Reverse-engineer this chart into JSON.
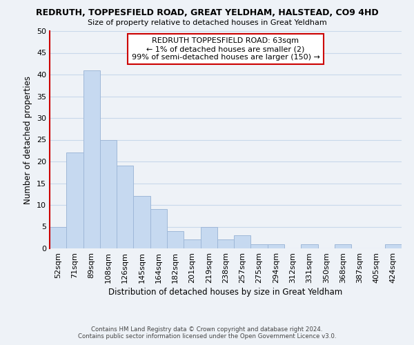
{
  "title": "REDRUTH, TOPPESFIELD ROAD, GREAT YELDHAM, HALSTEAD, CO9 4HD",
  "subtitle": "Size of property relative to detached houses in Great Yeldham",
  "xlabel": "Distribution of detached houses by size in Great Yeldham",
  "ylabel": "Number of detached properties",
  "bar_labels": [
    "52sqm",
    "71sqm",
    "89sqm",
    "108sqm",
    "126sqm",
    "145sqm",
    "164sqm",
    "182sqm",
    "201sqm",
    "219sqm",
    "238sqm",
    "257sqm",
    "275sqm",
    "294sqm",
    "312sqm",
    "331sqm",
    "350sqm",
    "368sqm",
    "387sqm",
    "405sqm",
    "424sqm"
  ],
  "bar_values": [
    5,
    22,
    41,
    25,
    19,
    12,
    9,
    4,
    2,
    5,
    2,
    3,
    1,
    1,
    0,
    1,
    0,
    1,
    0,
    0,
    1
  ],
  "bar_color": "#c6d9f0",
  "bar_edge_color": "#9fb8d8",
  "ylim": [
    0,
    50
  ],
  "yticks": [
    0,
    5,
    10,
    15,
    20,
    25,
    30,
    35,
    40,
    45,
    50
  ],
  "annotation_title": "REDRUTH TOPPESFIELD ROAD: 63sqm",
  "annotation_line1": "← 1% of detached houses are smaller (2)",
  "annotation_line2": "99% of semi-detached houses are larger (150) →",
  "footer1": "Contains HM Land Registry data © Crown copyright and database right 2024.",
  "footer2": "Contains public sector information licensed under the Open Government Licence v3.0.",
  "grid_color": "#c8d8ea",
  "background_color": "#eef2f7",
  "white": "#ffffff",
  "red": "#cc0000"
}
